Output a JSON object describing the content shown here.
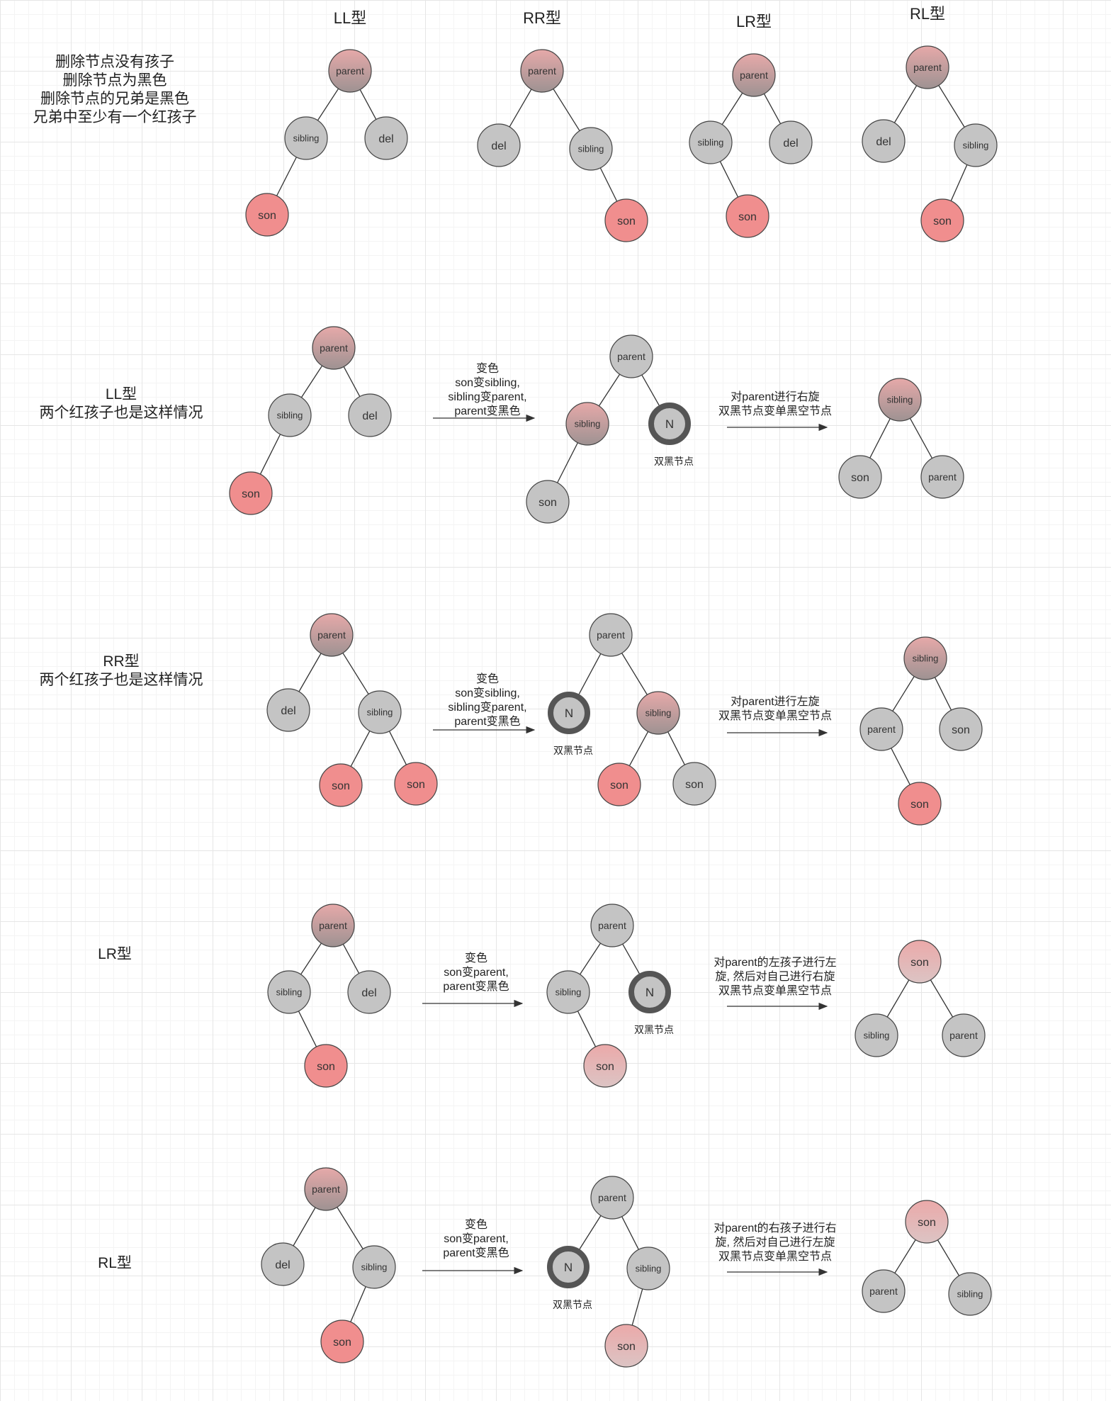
{
  "header": {
    "ll": "LL型",
    "rr": "RR型",
    "lr": "LR型",
    "rl": "RL型"
  },
  "rows": [
    {
      "id": "row-conditions",
      "desc": [
        "删除节点没有孩子",
        "删除节点为黑色",
        "删除节点的兄弟是黑色",
        "兄弟中至少有一个红孩子"
      ]
    },
    {
      "id": "row-ll",
      "desc": [
        "LL型",
        "两个红孩子也是这样情况"
      ],
      "arrow1": [
        "变色",
        "son变sibling,",
        "sibling变parent,",
        "parent变黑色"
      ],
      "arrow2": [
        "对parent进行右旋",
        "双黑节点变单黑空节点"
      ]
    },
    {
      "id": "row-rr",
      "desc": [
        "RR型",
        "两个红孩子也是这样情况"
      ],
      "arrow1": [
        "变色",
        "son变sibling,",
        "sibling变parent,",
        "parent变黑色"
      ],
      "arrow2": [
        "对parent进行左旋",
        "双黑节点变单黑空节点"
      ]
    },
    {
      "id": "row-lr",
      "desc": [
        "LR型"
      ],
      "arrow1": [
        "变色",
        "son变parent,",
        "parent变黑色"
      ],
      "arrow2": [
        "对parent的左孩子进行左",
        "旋, 然后对自己进行右旋",
        "双黑节点变单黑空节点"
      ]
    },
    {
      "id": "row-rl",
      "desc": [
        "RL型"
      ],
      "arrow1": [
        "变色",
        "son变parent,",
        "parent变黑色"
      ],
      "arrow2": [
        "对parent的右孩子进行右",
        "旋, 然后对自己进行左旋",
        "双黑节点变单黑空节点"
      ]
    }
  ],
  "labels": {
    "parent": "parent",
    "sibling": "sibling",
    "son": "son",
    "del": "del",
    "null_node": "N",
    "double_black": "双黑节点"
  },
  "colors": {
    "red": "#f08e8e",
    "gray": "#c4c4c4",
    "mauve": "#b8888a",
    "pink": "#e7b3b3",
    "edge": "#333333",
    "double_black_ring": "#555555"
  }
}
